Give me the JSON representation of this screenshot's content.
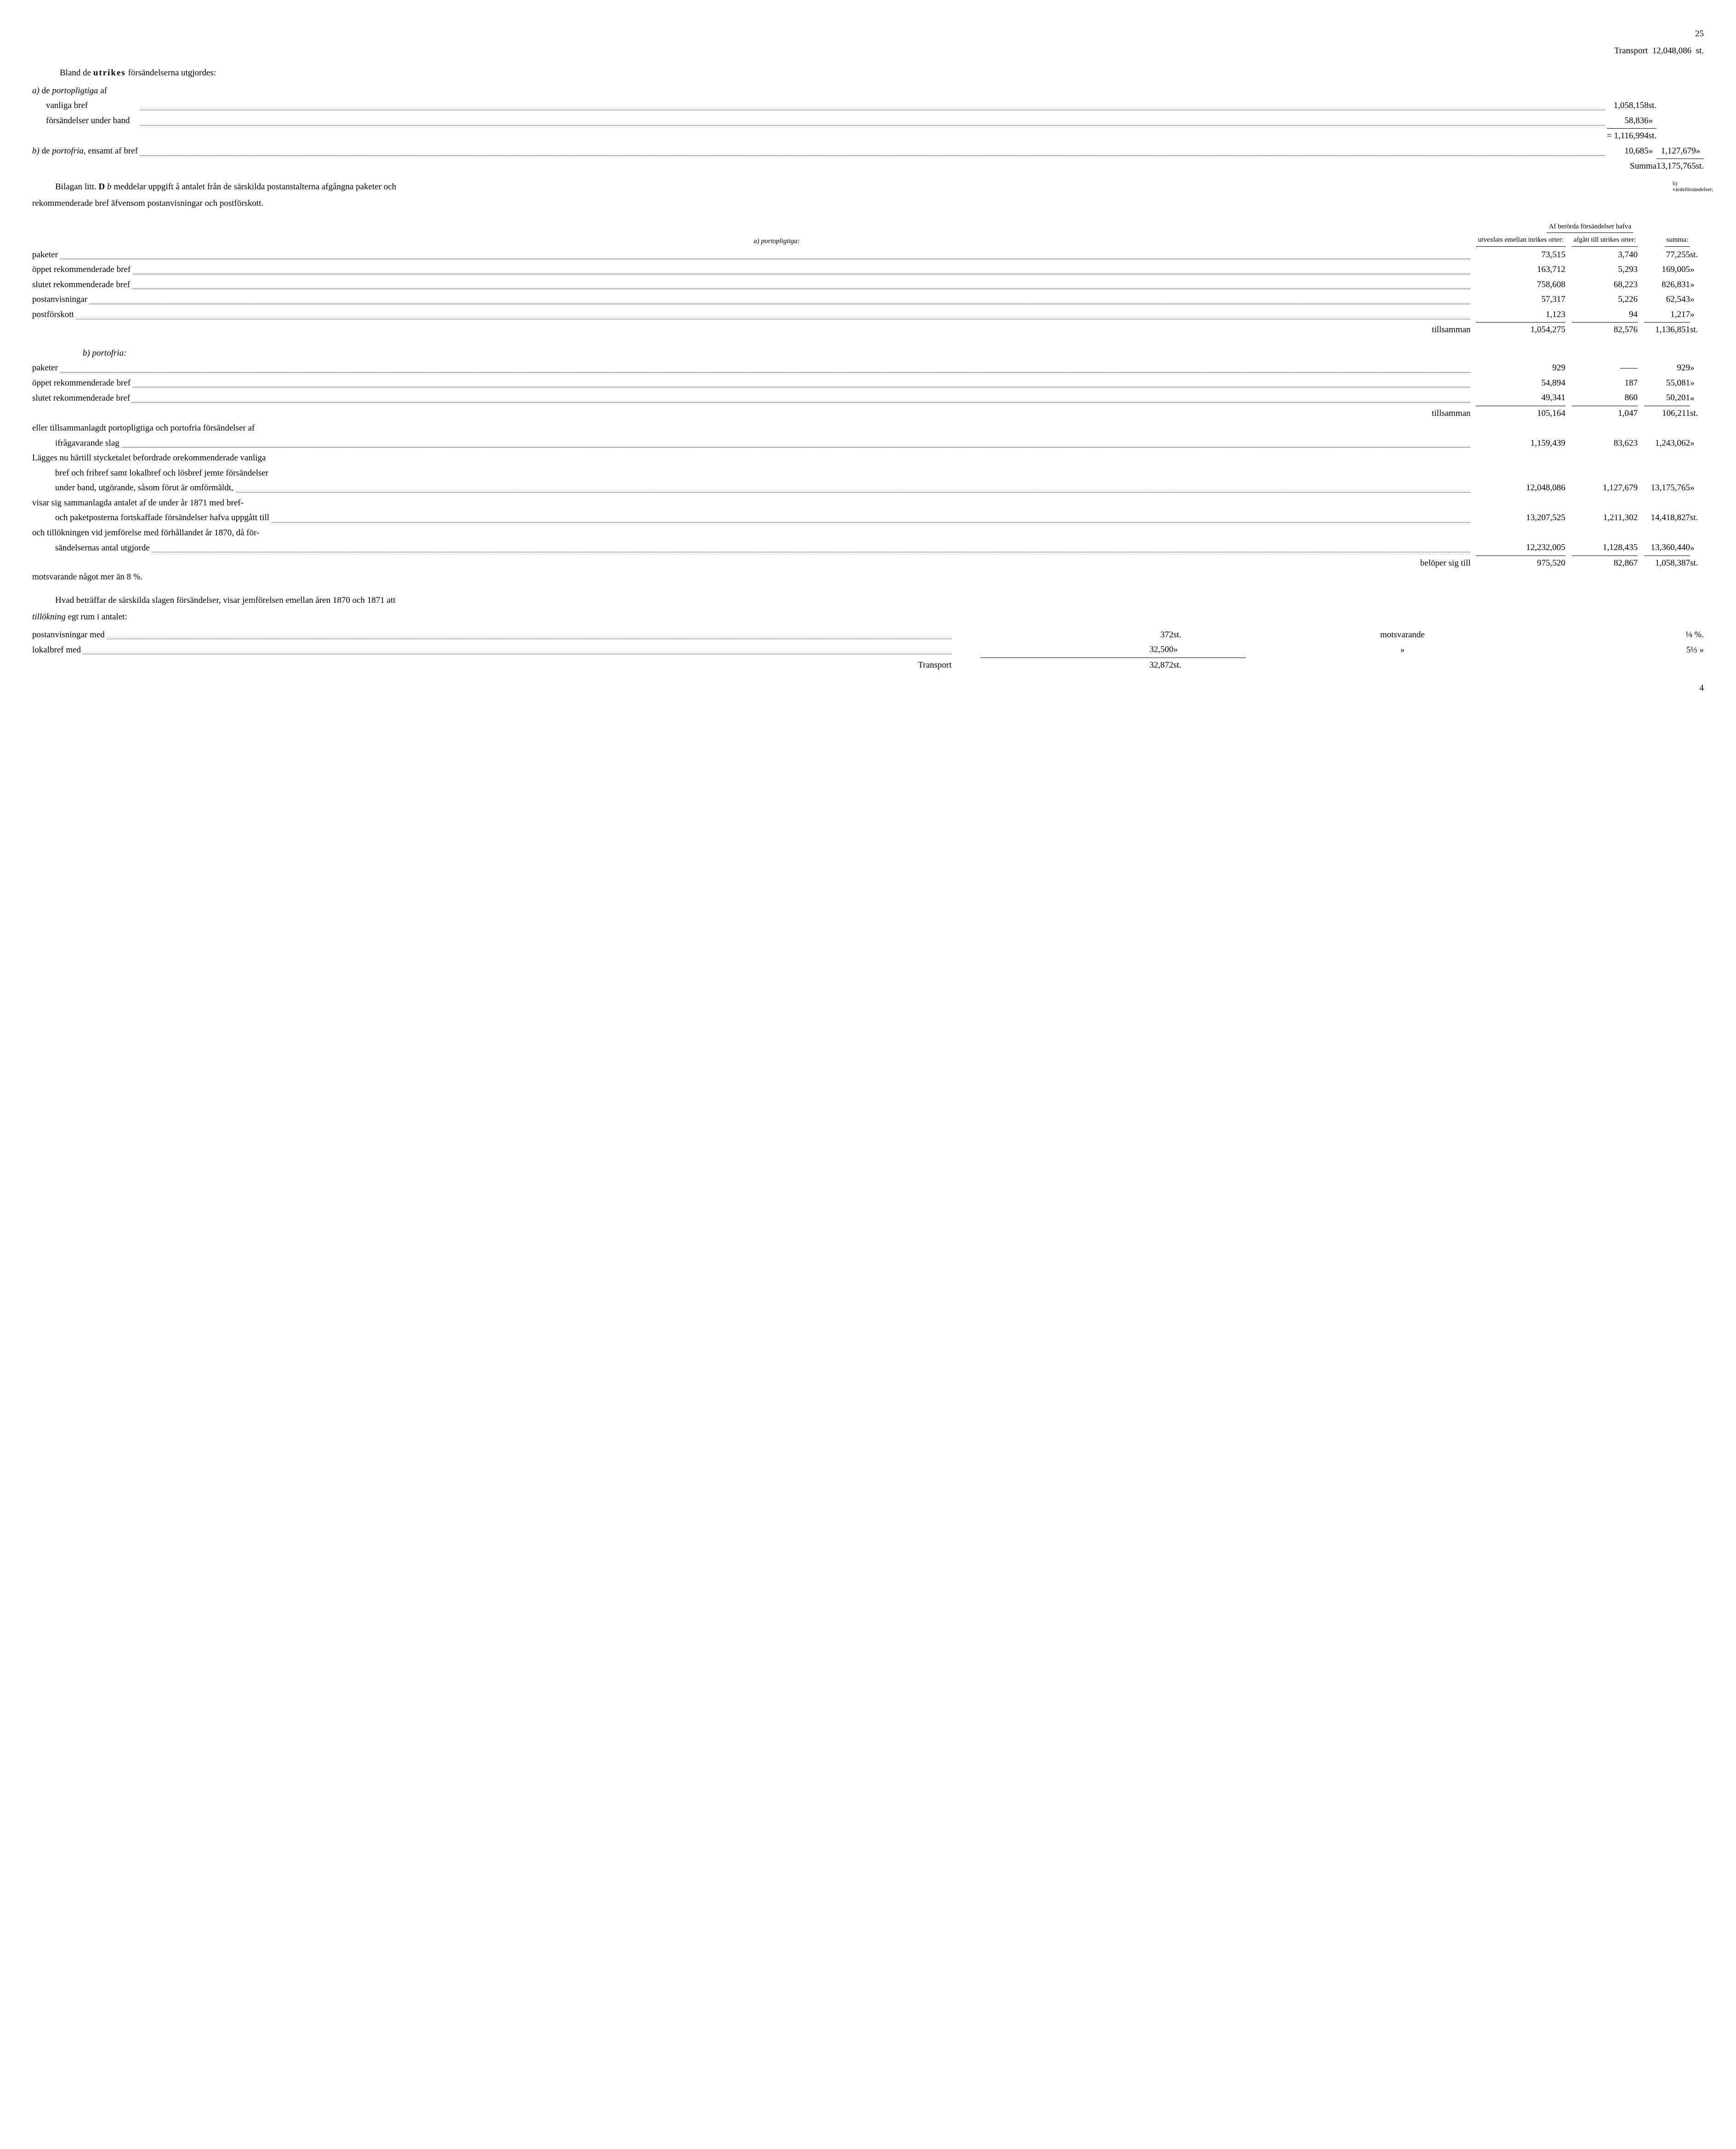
{
  "page_number": "25",
  "transport_top": {
    "label": "Transport",
    "value": "12,048,086",
    "unit": "st."
  },
  "margin_note_b": "b) värdeförsändelser;",
  "intro_para": "Bland de",
  "intro_bold": "utrikes",
  "intro_tail": "försändelserna utgjordes:",
  "a_label": "a)",
  "a_text1": "de",
  "a_text2_italic": "portopligtiga",
  "a_text3": "af",
  "utrikes": {
    "vanliga": {
      "label": "vanliga bref",
      "value": "1,058,158",
      "unit": "st."
    },
    "forsand": {
      "label": "försändelser under band",
      "value": "58,836",
      "unit": "»"
    },
    "sum_eq": {
      "prefix": "=",
      "value": "1,116,994",
      "unit": "st."
    },
    "b_label": "b)",
    "b_text1": "de",
    "b_text2_italic": "portofria,",
    "b_text3": "ensamt af bref",
    "b_value": "10,685",
    "b_unit": "»",
    "right_total": "1,127,679",
    "right_unit": "»",
    "summa_label": "Summa",
    "summa_value": "13,175,765",
    "summa_unit": "st."
  },
  "bilagan_para": {
    "p1": "Bilagan litt.",
    "bold": "D",
    "it": "b",
    "p2": "meddelar uppgift å antalet från de särskilda postanstalterna afgångna paketer och",
    "p3": "rekommenderade bref äfvensom postanvisningar och postförskott."
  },
  "table2": {
    "super_header": "Af berörda försändelser hafva",
    "col1": "utvexlats emellan inrikes orter:",
    "col2": "afgått till utrikes orter:",
    "col3": "summa:",
    "sec_a": "a)  portopligtiga:",
    "rows_a": [
      {
        "label": "paketer",
        "c1": "73,515",
        "c2": "3,740",
        "c3": "77,255",
        "u": "st."
      },
      {
        "label": "öppet rekommenderade bref",
        "c1": "163,712",
        "c2": "5,293",
        "c3": "169,005",
        "u": "»"
      },
      {
        "label": "slutet rekommenderade bref",
        "c1": "758,608",
        "c2": "68,223",
        "c3": "826,831",
        "u": "»"
      },
      {
        "label": "postanvisningar",
        "c1": "57,317",
        "c2": "5,226",
        "c3": "62,543",
        "u": "»"
      },
      {
        "label": "postförskott",
        "c1": "1,123",
        "c2": "94",
        "c3": "1,217",
        "u": "»"
      }
    ],
    "till_a": {
      "label": "tillsamman",
      "c1": "1,054,275",
      "c2": "82,576",
      "c3": "1,136,851",
      "u": "st."
    },
    "sec_b": "b)  portofria:",
    "rows_b": [
      {
        "label": "paketer",
        "c1": "929",
        "c2": "——",
        "c3": "929",
        "u": "»"
      },
      {
        "label": "öppet rekommenderade bref",
        "c1": "54,894",
        "c2": "187",
        "c3": "55,081",
        "u": "»"
      },
      {
        "label": "slutet rekommenderade bref",
        "c1": "49,341",
        "c2": "860",
        "c3": "50,201",
        "u": "«"
      }
    ],
    "till_b": {
      "label": "tillsamman",
      "c1": "105,164",
      "c2": "1,047",
      "c3": "106,211",
      "u": "st."
    },
    "text_rows": [
      {
        "label1": "eller tillsammanlagdt portopligtiga och portofria försändelser af",
        "label2": "ifrågavarande slag",
        "c1": "1,159,439",
        "c2": "83,623",
        "c3": "1,243,062",
        "u": "»"
      },
      {
        "label1": "Lägges nu härtill stycketalet befordrade orekommenderade vanliga",
        "label2": "bref och fribref samt lokalbref och lösbref jemte försändelser",
        "label3": "under band, utgörande, såsom förut är omförmäldt, ",
        "c1": "12,048,086",
        "c2": "1,127,679",
        "c3": "13,175,765",
        "u": "»"
      },
      {
        "label1": "visar sig sammanlagda antalet af de under år 1871 med bref-",
        "label2": "och paketposterna fortskaffade försändelser hafva uppgått till",
        "c1": "13,207,525",
        "c2": "1,211,302",
        "c3": "14,418,827",
        "u": "st."
      },
      {
        "label1": "och tillökningen vid jemförelse med förhållandet år 1870, då för-",
        "label2": "sändelsernas antal utgjorde",
        "c1": "12,232,005",
        "c2": "1,128,435",
        "c3": "13,360,440",
        "u": "»"
      }
    ],
    "belop": {
      "label": "belöper sig till",
      "c1": "975,520",
      "c2": "82,867",
      "c3": "1,058,387",
      "u": "st."
    },
    "mots": "motsvarande något mer än 8 %."
  },
  "para3": {
    "p1": "Hvad beträffar de särskilda slagen försändelser, visar jemförelsen emellan åren 1870 och 1871 att",
    "p2_italic": "tillökning",
    "p2": "egt rum i antalet:"
  },
  "table3": {
    "rows": [
      {
        "label": "postanvisningar med",
        "v": "372",
        "u": "st.",
        "m": "motsvarande",
        "pct": "⅛ %."
      },
      {
        "label": "lokalbref med",
        "v": "32,500",
        "u": "»",
        "m": "»",
        "pct": "5⅓ »"
      }
    ],
    "transport": {
      "label": "Transport",
      "v": "32,872",
      "u": "st."
    }
  },
  "foot_number": "4"
}
